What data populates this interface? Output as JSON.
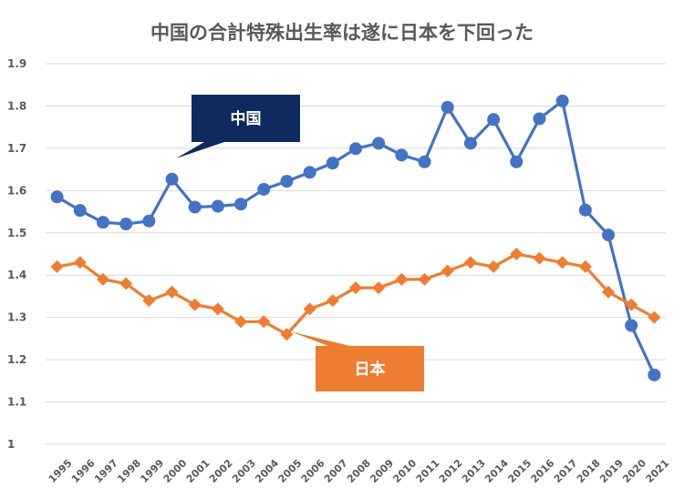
{
  "chart_data": {
    "type": "line",
    "title": "中国の合計特殊出生率は遂に日本を下回った",
    "xlabel": "",
    "ylabel": "",
    "x": [
      "1995",
      "1996",
      "1997",
      "1998",
      "1999",
      "2000",
      "2001",
      "2002",
      "2003",
      "2004",
      "2005",
      "2006",
      "2007",
      "2008",
      "2009",
      "2010",
      "2011",
      "2012",
      "2013",
      "2014",
      "2015",
      "2016",
      "2017",
      "2018",
      "2019",
      "2020",
      "2021"
    ],
    "ylim": [
      1,
      1.9
    ],
    "yticks": [
      "1",
      "1.1",
      "1.2",
      "1.3",
      "1.4",
      "1.5",
      "1.6",
      "1.7",
      "1.8",
      "1.9"
    ],
    "grid": true,
    "series": [
      {
        "name": "中国",
        "color": "#4472C4",
        "marker": "circle",
        "values": [
          1.585,
          1.553,
          1.525,
          1.521,
          1.528,
          1.627,
          1.561,
          1.563,
          1.568,
          1.603,
          1.622,
          1.643,
          1.665,
          1.699,
          1.712,
          1.684,
          1.668,
          1.797,
          1.712,
          1.768,
          1.668,
          1.77,
          1.812,
          1.554,
          1.495,
          1.281,
          1.164
        ]
      },
      {
        "name": "日本",
        "color": "#ED7D31",
        "marker": "diamond",
        "values": [
          1.42,
          1.43,
          1.39,
          1.38,
          1.34,
          1.36,
          1.33,
          1.32,
          1.29,
          1.29,
          1.26,
          1.32,
          1.34,
          1.37,
          1.37,
          1.39,
          1.39,
          1.41,
          1.43,
          1.42,
          1.45,
          1.44,
          1.43,
          1.42,
          1.36,
          1.33,
          1.3
        ]
      }
    ],
    "callouts": [
      {
        "label": "中国",
        "series": 0,
        "fill": "#0F2A5F"
      },
      {
        "label": "日本",
        "series": 1,
        "fill": "#ED7D31"
      }
    ]
  }
}
